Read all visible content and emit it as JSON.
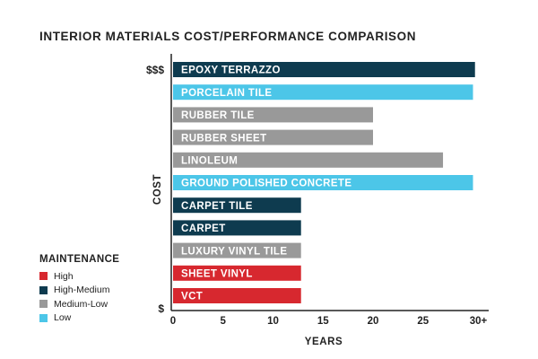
{
  "chart_data": {
    "type": "bar",
    "orientation": "horizontal",
    "title": "INTERIOR MATERIALS COST/PERFORMANCE COMPARISON",
    "xlabel": "YEARS",
    "ylabel": "COST",
    "y_top_label": "$$$",
    "y_bottom_label": "$",
    "xlim": [
      0,
      31
    ],
    "xticks": [
      "0",
      "5",
      "10",
      "15",
      "20",
      "25",
      "30+"
    ],
    "grid": false,
    "legend_position": "bottom-left",
    "legend_title": "MAINTENANCE",
    "maintenance_levels": [
      {
        "name": "High",
        "color": "#d7282f"
      },
      {
        "name": "High-Medium",
        "color": "#0e3b4f"
      },
      {
        "name": "Medium-Low",
        "color": "#999999"
      },
      {
        "name": "Low",
        "color": "#4cc6e8"
      }
    ],
    "categories": [
      "EPOXY TERRAZZO",
      "PORCELAIN TILE",
      "RUBBER TILE",
      "RUBBER SHEET",
      "LINOLEUM",
      "GROUND POLISHED CONCRETE",
      "CARPET TILE",
      "CARPET",
      "LUXURY VINYL TILE",
      "SHEET VINYL",
      "VCT"
    ],
    "values": [
      30.2,
      30,
      20,
      20,
      27,
      30,
      12.8,
      12.8,
      12.8,
      12.8,
      12.8
    ],
    "maintenance": [
      "High-Medium",
      "Low",
      "Medium-Low",
      "Medium-Low",
      "Medium-Low",
      "Low",
      "High-Medium",
      "High-Medium",
      "Medium-Low",
      "High",
      "High"
    ]
  }
}
